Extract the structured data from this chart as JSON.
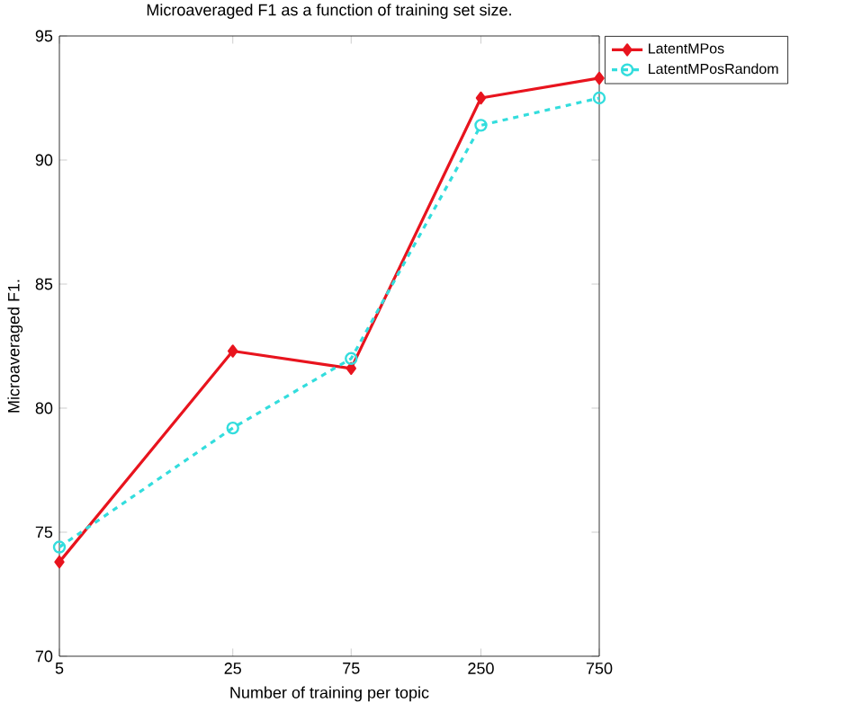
{
  "chart_data": {
    "type": "line",
    "title": "Microaveraged F1 as a function of training set size.",
    "xlabel": "Number of training per topic",
    "ylabel": "Microaveraged F1.",
    "x": [
      5,
      25,
      75,
      250,
      750
    ],
    "log": "x",
    "xlim": [
      5,
      750
    ],
    "xticks": [
      5,
      25,
      75,
      250,
      750
    ],
    "ylim": [
      70,
      95
    ],
    "yticks": [
      70,
      75,
      80,
      85,
      90,
      95
    ],
    "legend": "top right",
    "grid": false,
    "series": [
      {
        "name": "LatentMPos",
        "color": "#e8141e",
        "values": [
          73.8,
          82.3,
          81.6,
          92.5,
          93.3
        ],
        "marker": "diamond",
        "line_style": "solid"
      },
      {
        "name": "LatentMPosRandom",
        "color": "#33dddd",
        "values": [
          74.4,
          79.2,
          82.0,
          91.4,
          92.5
        ],
        "marker": "circle",
        "line_style": "dashed"
      }
    ]
  }
}
